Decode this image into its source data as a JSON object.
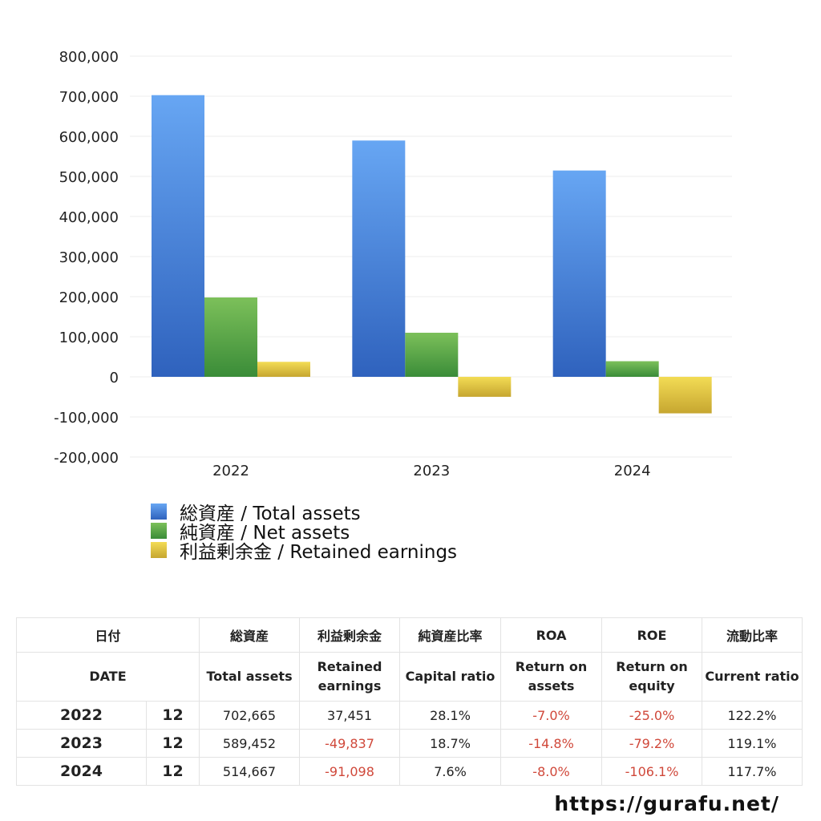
{
  "chart_data": {
    "type": "bar",
    "categories": [
      "2022",
      "2023",
      "2024"
    ],
    "series": [
      {
        "name": "総資産 / Total assets",
        "values": [
          702665,
          589452,
          514667
        ],
        "color": "#3a7ee0"
      },
      {
        "name": "純資産 / Net assets",
        "values": [
          198000,
          110000,
          39000
        ],
        "color": "#52a844"
      },
      {
        "name": "利益剰余金 / Retained earnings",
        "values": [
          37451,
          -49837,
          -91098
        ],
        "color": "#e3c23a"
      }
    ],
    "ylim": [
      -200000,
      800000
    ],
    "yticks": [
      "800,000",
      "700,000",
      "600,000",
      "500,000",
      "400,000",
      "300,000",
      "200,000",
      "100,000",
      "0",
      "-100,000",
      "-200,000"
    ],
    "grid": true,
    "legend_position": "bottom-left"
  },
  "table": {
    "header_jp": [
      "日付",
      "総資産",
      "利益剰余金",
      "純資産比率",
      "ROA",
      "ROE",
      "流動比率"
    ],
    "header_en": [
      "DATE",
      "Total assets",
      "Retained earnings",
      "Capital ratio",
      "Return on assets",
      "Return on equity",
      "Current ratio"
    ],
    "rows": [
      {
        "year": "2022",
        "month": "12",
        "total": "702,665",
        "retained": "37,451",
        "capital": "28.1%",
        "roa": "-7.0%",
        "roe": "-25.0%",
        "current": "122.2%"
      },
      {
        "year": "2023",
        "month": "12",
        "total": "589,452",
        "retained": "-49,837",
        "capital": "18.7%",
        "roa": "-14.8%",
        "roe": "-79.2%",
        "current": "119.1%"
      },
      {
        "year": "2024",
        "month": "12",
        "total": "514,667",
        "retained": "-91,098",
        "capital": "7.6%",
        "roa": "-8.0%",
        "roe": "-106.1%",
        "current": "117.7%"
      }
    ],
    "negative_color": "#d0483a"
  },
  "footer": {
    "url": "https://gurafu.net/"
  }
}
